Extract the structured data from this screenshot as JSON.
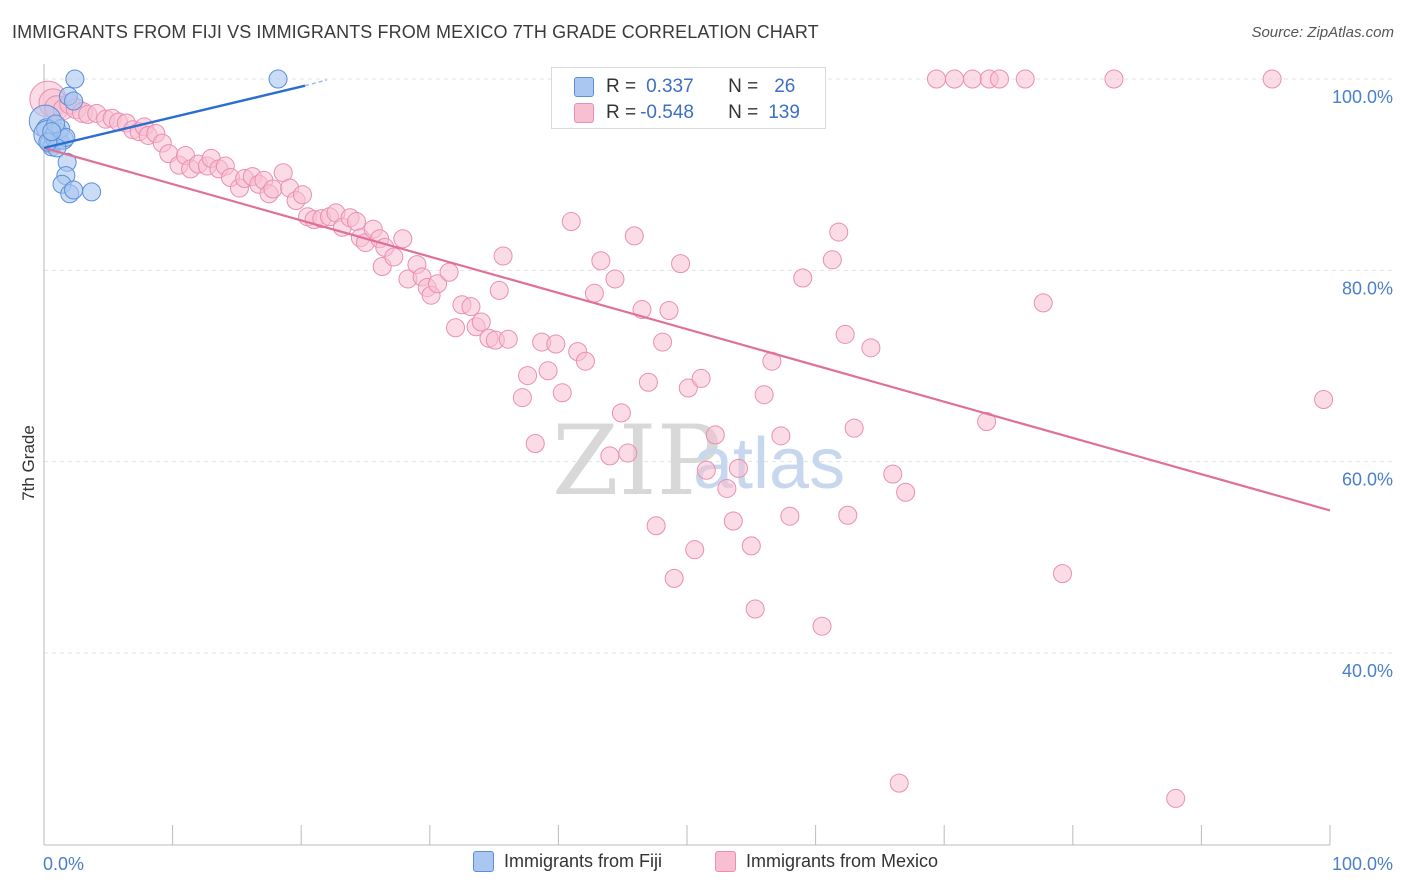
{
  "title": "IMMIGRANTS FROM FIJI VS IMMIGRANTS FROM MEXICO 7TH GRADE CORRELATION CHART",
  "source": "Source: ZipAtlas.com",
  "watermark": {
    "zip": "ZIP",
    "atlas": "atlas"
  },
  "colors": {
    "fiji_fill": "#a9c7f0",
    "fiji_stroke": "#5b8fd6",
    "fiji_line": "#2a6fd0",
    "mexico_fill": "#f7bfd1",
    "mexico_stroke": "#ea8fb0",
    "mexico_line": "#e0709a",
    "grid": "#e3e3e3",
    "axis_label": "#4a7fc9"
  },
  "legend": {
    "rows": [
      {
        "r_label": "R =",
        "r_value": "0.337",
        "n_label": "N =",
        "n_value": "26"
      },
      {
        "r_label": "R =",
        "r_value": "-0.548",
        "n_label": "N =",
        "n_value": "139"
      }
    ]
  },
  "bottom_legend": {
    "fiji": "Immigrants from Fiji",
    "mexico": "Immigrants from Mexico"
  },
  "chart_data": {
    "type": "scatter",
    "title": "IMMIGRANTS FROM FIJI VS IMMIGRANTS FROM MEXICO 7TH GRADE CORRELATION CHART",
    "xlabel": "",
    "ylabel": "7th Grade",
    "xlim": [
      0,
      100
    ],
    "ylim": [
      20,
      100
    ],
    "x_tick_labels": [
      "0.0%",
      "100.0%"
    ],
    "y_ticks": [
      40,
      60,
      80,
      100
    ],
    "y_tick_labels": [
      "40.0%",
      "60.0%",
      "80.0%",
      "100.0%"
    ],
    "grid": true,
    "series": [
      {
        "name": "Immigrants from Fiji",
        "R": 0.337,
        "N": 26,
        "trend": {
          "x": [
            0,
            20.3
          ],
          "y": [
            92.8,
            99.3
          ],
          "dashed_to": [
            22.0,
            99.9
          ]
        },
        "points": [
          [
            0.1,
            95.6,
            16
          ],
          [
            0.2,
            94.8,
            10
          ],
          [
            0.3,
            94.2,
            14
          ],
          [
            0.5,
            93.3,
            10
          ],
          [
            0.6,
            92.9,
            9
          ],
          [
            0.8,
            94.0,
            10
          ],
          [
            0.9,
            93.5,
            9
          ],
          [
            1.0,
            94.3,
            11
          ],
          [
            1.2,
            93.6,
            9
          ],
          [
            1.3,
            94.8,
            9
          ],
          [
            1.5,
            93.7,
            10
          ],
          [
            1.7,
            93.9,
            9
          ],
          [
            1.8,
            91.3,
            9
          ],
          [
            1.7,
            89.9,
            9
          ],
          [
            1.4,
            89.0,
            9
          ],
          [
            2.0,
            88.0,
            9
          ],
          [
            2.3,
            88.4,
            9
          ],
          [
            3.7,
            88.2,
            9
          ],
          [
            1.9,
            98.2,
            9
          ],
          [
            2.3,
            97.7,
            9
          ],
          [
            2.4,
            100.0,
            9
          ],
          [
            18.2,
            100.0,
            9
          ],
          [
            0.9,
            95.3,
            9
          ],
          [
            1.0,
            92.8,
            9
          ],
          [
            0.3,
            93.4,
            9
          ],
          [
            0.6,
            94.5,
            9
          ]
        ]
      },
      {
        "name": "Immigrants from Mexico",
        "R": -0.548,
        "N": 139,
        "trend": {
          "x": [
            0,
            100
          ],
          "y": [
            92.8,
            54.9
          ]
        },
        "points": [
          [
            0.3,
            97.9,
            18
          ],
          [
            0.7,
            97.5,
            14
          ],
          [
            1.0,
            97.0,
            12
          ],
          [
            1.5,
            96.8,
            10
          ],
          [
            2.0,
            97.4,
            10
          ],
          [
            2.5,
            96.9,
            10
          ],
          [
            3.0,
            96.5,
            10
          ],
          [
            3.4,
            96.3,
            9
          ],
          [
            4.1,
            96.4,
            9
          ],
          [
            4.8,
            95.8,
            9
          ],
          [
            5.3,
            95.9,
            9
          ],
          [
            5.8,
            95.5,
            9
          ],
          [
            6.4,
            95.4,
            9
          ],
          [
            6.9,
            94.7,
            9
          ],
          [
            7.4,
            94.5,
            9
          ],
          [
            7.8,
            95.0,
            9
          ],
          [
            8.1,
            94.1,
            9
          ],
          [
            8.7,
            94.3,
            9
          ],
          [
            9.2,
            93.3,
            9
          ],
          [
            9.7,
            92.2,
            9
          ],
          [
            10.5,
            91.0,
            9
          ],
          [
            11.0,
            92.0,
            9
          ],
          [
            11.4,
            90.6,
            9
          ],
          [
            12.0,
            91.1,
            9
          ],
          [
            12.7,
            90.9,
            9
          ],
          [
            13.0,
            91.7,
            9
          ],
          [
            13.6,
            90.6,
            9
          ],
          [
            14.1,
            90.9,
            9
          ],
          [
            14.5,
            89.7,
            9
          ],
          [
            15.2,
            88.6,
            9
          ],
          [
            15.6,
            89.6,
            9
          ],
          [
            16.2,
            89.8,
            9
          ],
          [
            16.7,
            89.0,
            9
          ],
          [
            17.1,
            89.4,
            9
          ],
          [
            17.5,
            88.0,
            9
          ],
          [
            17.8,
            88.5,
            9
          ],
          [
            18.6,
            90.2,
            9
          ],
          [
            19.1,
            88.6,
            9
          ],
          [
            19.6,
            87.3,
            9
          ],
          [
            20.1,
            87.9,
            9
          ],
          [
            20.5,
            85.6,
            9
          ],
          [
            21.0,
            85.3,
            9
          ],
          [
            21.6,
            85.4,
            9
          ],
          [
            22.2,
            85.6,
            9
          ],
          [
            22.7,
            86.0,
            9
          ],
          [
            23.2,
            84.5,
            9
          ],
          [
            23.8,
            85.5,
            9
          ],
          [
            24.3,
            85.1,
            9
          ],
          [
            24.6,
            83.4,
            9
          ],
          [
            25.0,
            82.9,
            9
          ],
          [
            25.6,
            84.3,
            9
          ],
          [
            26.1,
            83.3,
            9
          ],
          [
            26.5,
            82.4,
            9
          ],
          [
            26.3,
            80.4,
            9
          ],
          [
            27.2,
            81.4,
            9
          ],
          [
            27.9,
            83.3,
            9
          ],
          [
            28.3,
            79.1,
            9
          ],
          [
            29.0,
            80.6,
            9
          ],
          [
            29.4,
            79.3,
            9
          ],
          [
            29.8,
            78.2,
            9
          ],
          [
            30.1,
            77.4,
            9
          ],
          [
            30.6,
            78.6,
            9
          ],
          [
            31.5,
            79.8,
            9
          ],
          [
            32.0,
            74.0,
            9
          ],
          [
            32.5,
            76.4,
            9
          ],
          [
            33.2,
            76.2,
            9
          ],
          [
            33.6,
            74.1,
            9
          ],
          [
            34.0,
            74.6,
            9
          ],
          [
            34.6,
            72.9,
            9
          ],
          [
            35.1,
            72.7,
            9
          ],
          [
            35.4,
            77.9,
            9
          ],
          [
            35.7,
            81.5,
            9
          ],
          [
            36.1,
            72.8,
            9
          ],
          [
            37.2,
            66.7,
            9
          ],
          [
            37.6,
            69.0,
            9
          ],
          [
            38.2,
            61.9,
            9
          ],
          [
            38.7,
            72.5,
            9
          ],
          [
            39.2,
            69.5,
            9
          ],
          [
            39.8,
            72.3,
            9
          ],
          [
            40.3,
            67.2,
            9
          ],
          [
            41.0,
            85.1,
            9
          ],
          [
            41.5,
            71.5,
            9
          ],
          [
            42.1,
            70.5,
            9
          ],
          [
            42.8,
            77.6,
            9
          ],
          [
            43.3,
            81.0,
            9
          ],
          [
            44.0,
            60.6,
            9
          ],
          [
            44.4,
            79.1,
            9
          ],
          [
            44.9,
            65.1,
            9
          ],
          [
            45.4,
            60.9,
            9
          ],
          [
            45.9,
            83.6,
            9
          ],
          [
            46.5,
            75.9,
            9
          ],
          [
            47.0,
            68.3,
            9
          ],
          [
            47.6,
            53.3,
            9
          ],
          [
            48.1,
            72.5,
            9
          ],
          [
            48.6,
            75.8,
            9
          ],
          [
            49.0,
            47.8,
            9
          ],
          [
            49.5,
            80.7,
            9
          ],
          [
            50.1,
            67.7,
            9
          ],
          [
            50.6,
            50.8,
            9
          ],
          [
            51.1,
            68.7,
            9
          ],
          [
            51.5,
            59.1,
            9
          ],
          [
            52.2,
            62.8,
            9
          ],
          [
            53.1,
            57.2,
            9
          ],
          [
            53.6,
            53.8,
            9
          ],
          [
            54.0,
            59.3,
            9
          ],
          [
            55.0,
            51.2,
            9
          ],
          [
            55.3,
            44.6,
            9
          ],
          [
            56.0,
            67.0,
            9
          ],
          [
            56.6,
            70.5,
            9
          ],
          [
            57.3,
            62.7,
            9
          ],
          [
            58.0,
            54.3,
            9
          ],
          [
            59.0,
            79.2,
            9
          ],
          [
            60.5,
            42.8,
            9
          ],
          [
            61.3,
            81.1,
            9
          ],
          [
            61.8,
            84.0,
            9
          ],
          [
            62.3,
            73.3,
            9
          ],
          [
            62.5,
            54.4,
            9
          ],
          [
            63.0,
            63.5,
            9
          ],
          [
            64.3,
            71.9,
            9
          ],
          [
            66.0,
            58.7,
            9
          ],
          [
            66.5,
            26.4,
            9
          ],
          [
            67.0,
            56.8,
            9
          ],
          [
            69.4,
            100.0,
            9
          ],
          [
            70.8,
            100.0,
            9
          ],
          [
            72.2,
            100.0,
            9
          ],
          [
            73.5,
            100.0,
            9
          ],
          [
            74.3,
            100.0,
            9
          ],
          [
            76.3,
            100.0,
            9
          ],
          [
            73.3,
            64.2,
            9
          ],
          [
            77.7,
            76.6,
            9
          ],
          [
            79.2,
            48.3,
            9
          ],
          [
            83.2,
            100.0,
            9
          ],
          [
            88.0,
            24.8,
            9
          ],
          [
            95.5,
            100.0,
            9
          ],
          [
            99.5,
            66.5,
            9
          ],
          [
            47.5,
            100.0,
            9
          ],
          [
            59.4,
            100.0,
            9
          ],
          [
            57.9,
            100.0,
            9
          ]
        ]
      }
    ]
  }
}
